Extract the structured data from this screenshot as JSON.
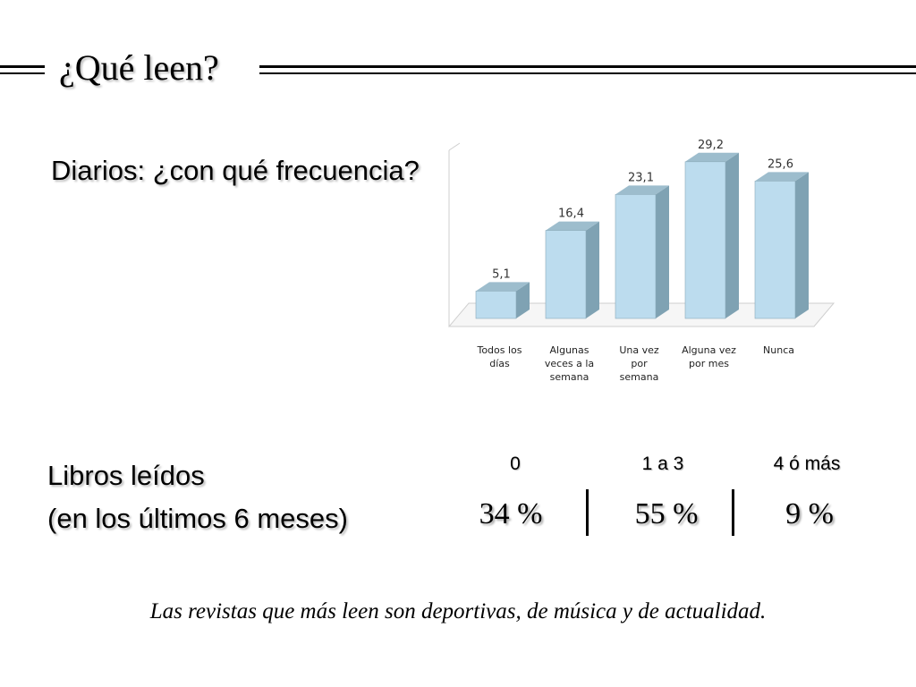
{
  "slide": {
    "title": "¿Qué leen?",
    "diarios_heading": "Diarios: ¿con qué frecuencia?",
    "libros_heading_line1": "Libros leídos",
    "libros_heading_line2": "(en los últimos 6 meses)",
    "libros_table": {
      "columns": [
        "0",
        "1 a 3",
        "4 ó más"
      ],
      "values": [
        "34 %",
        "55 %",
        "9 %"
      ]
    },
    "footer": "Las revistas que más leen son deportivas, de música y de actualidad."
  },
  "chart_data": {
    "type": "bar",
    "categories": [
      [
        "Todos los",
        "días"
      ],
      [
        "Algunas",
        "veces a la",
        "semana"
      ],
      [
        "Una vez",
        "por",
        "semana"
      ],
      [
        "Alguna vez",
        "por mes"
      ],
      [
        "Nunca"
      ]
    ],
    "values": [
      5.1,
      16.4,
      23.1,
      29.2,
      25.6
    ],
    "data_labels": [
      "5,1",
      "16,4",
      "23,1",
      "29,2",
      "25,6"
    ],
    "ylim": [
      0,
      35
    ],
    "grid": false,
    "legend": "none",
    "colors": {
      "front": "#bcdcee",
      "side": "#7fa2b3",
      "top": "#9dbdcd",
      "edge": "#8aaab9"
    }
  }
}
